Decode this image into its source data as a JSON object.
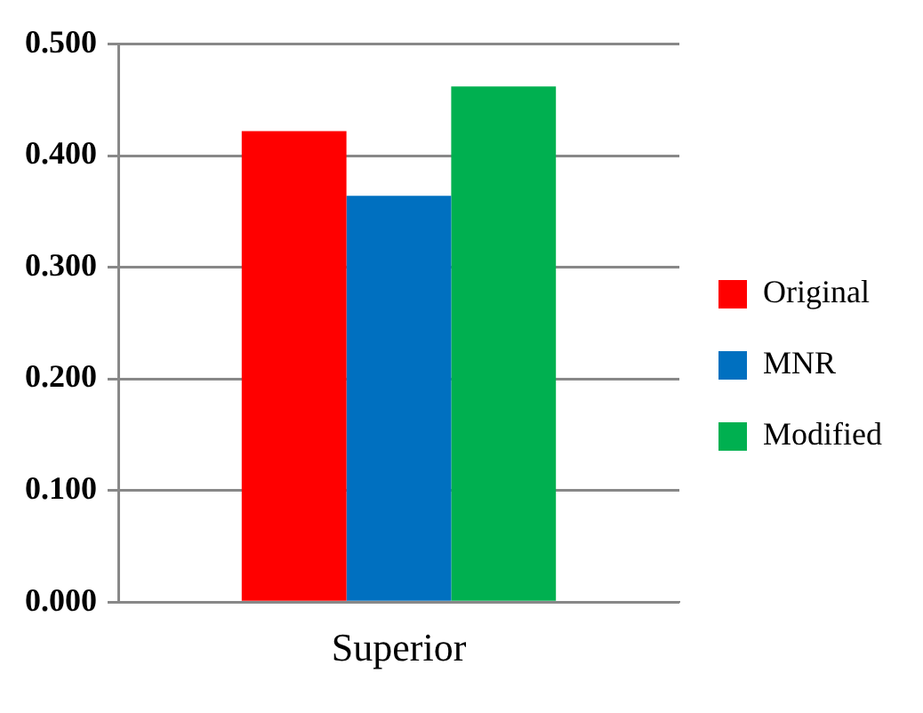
{
  "chart_data": {
    "type": "bar",
    "categories": [
      "Superior"
    ],
    "series": [
      {
        "name": "Original",
        "color": "#ff0000",
        "values": [
          0.422
        ]
      },
      {
        "name": "MNR",
        "color": "#0070c0",
        "values": [
          0.364
        ]
      },
      {
        "name": "Modified",
        "color": "#00b050",
        "values": [
          0.462
        ]
      }
    ],
    "ylim": [
      0,
      0.5
    ],
    "yticks": [
      {
        "value": 0,
        "label": "0.000"
      },
      {
        "value": 0.1,
        "label": "0.100"
      },
      {
        "value": 0.2,
        "label": "0.200"
      },
      {
        "value": 0.3,
        "label": "0.300"
      },
      {
        "value": 0.4,
        "label": "0.400"
      },
      {
        "value": 0.5,
        "label": "0.500"
      }
    ],
    "grid": "y",
    "legend": "right"
  }
}
